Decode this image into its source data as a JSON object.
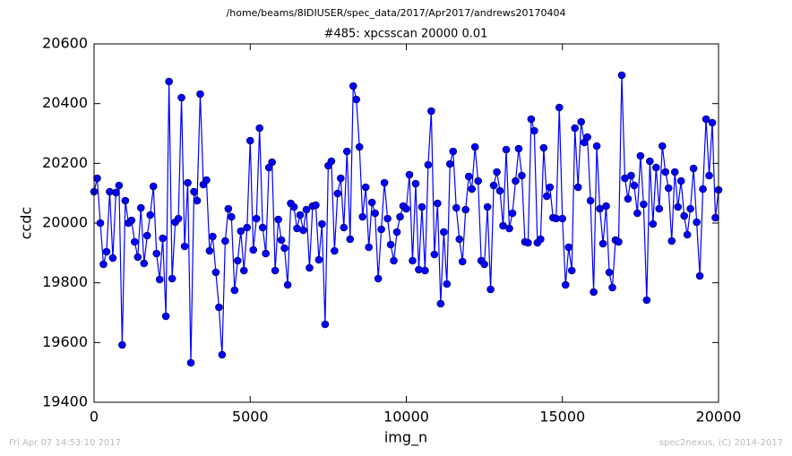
{
  "chart_data": {
    "type": "line",
    "suptitle": "/home/beams/8IDIUSER/spec_data/2017/Apr2017/andrews20170404",
    "title": "#485: xpcsscan 20000 0.01",
    "x_label": "img_n",
    "y_label": "ccdc",
    "footer_left": "Fri Apr 07 14:53:10 2017",
    "footer_right": "spec2nexus, (C) 2014-2017",
    "xlim": [
      0,
      20000
    ],
    "xticks": [
      0,
      5000,
      10000,
      15000,
      20000
    ],
    "ylim": [
      19400,
      20600
    ],
    "yticks": [
      19400,
      19600,
      19800,
      20000,
      20200,
      20400,
      20600
    ],
    "x": [
      0,
      100,
      200,
      300,
      400,
      500,
      600,
      700,
      800,
      900,
      1000,
      1100,
      1200,
      1300,
      1400,
      1500,
      1600,
      1700,
      1800,
      1900,
      2000,
      2100,
      2200,
      2300,
      2400,
      2500,
      2600,
      2700,
      2800,
      2900,
      3000,
      3100,
      3200,
      3300,
      3400,
      3500,
      3600,
      3700,
      3800,
      3900,
      4000,
      4100,
      4200,
      4300,
      4400,
      4500,
      4600,
      4700,
      4800,
      4900,
      5000,
      5100,
      5200,
      5300,
      5400,
      5500,
      5600,
      5700,
      5800,
      5900,
      6000,
      6100,
      6200,
      6300,
      6400,
      6500,
      6600,
      6700,
      6800,
      6900,
      7000,
      7100,
      7200,
      7300,
      7400,
      7500,
      7600,
      7700,
      7800,
      7900,
      8000,
      8100,
      8200,
      8300,
      8400,
      8500,
      8600,
      8700,
      8800,
      8900,
      9000,
      9100,
      9200,
      9300,
      9400,
      9500,
      9600,
      9700,
      9800,
      9900,
      10000,
      10100,
      10200,
      10300,
      10400,
      10500,
      10600,
      10700,
      10800,
      10900,
      11000,
      11100,
      11200,
      11300,
      11400,
      11500,
      11600,
      11700,
      11800,
      11900,
      12000,
      12100,
      12200,
      12300,
      12400,
      12500,
      12600,
      12700,
      12800,
      12900,
      13000,
      13100,
      13200,
      13300,
      13400,
      13500,
      13600,
      13700,
      13800,
      13900,
      14000,
      14100,
      14200,
      14300,
      14400,
      14500,
      14600,
      14700,
      14800,
      14900,
      15000,
      15100,
      15200,
      15300,
      15400,
      15500,
      15600,
      15700,
      15800,
      15900,
      16000,
      16100,
      16200,
      16300,
      16400,
      16500,
      16600,
      16700,
      16800,
      16900,
      17000,
      17100,
      17200,
      17300,
      17400,
      17500,
      17600,
      17700,
      17800,
      17900,
      18000,
      18100,
      18200,
      18300,
      18400,
      18500,
      18600,
      18700,
      18800,
      18900,
      19000,
      19100,
      19200,
      19300,
      19400,
      19500,
      19600,
      19700,
      19800,
      19900,
      20000
    ],
    "series": [
      {
        "name": "ccdc",
        "color": "#0000ff",
        "values": [
          20105,
          20150,
          20000,
          19862,
          19904,
          20105,
          19883,
          20102,
          20126,
          19592,
          20075,
          20000,
          20009,
          19937,
          19886,
          20051,
          19865,
          19958,
          20027,
          20123,
          19898,
          19811,
          19949,
          19688,
          20474,
          19814,
          20003,
          20015,
          20420,
          19922,
          20135,
          19532,
          20105,
          20075,
          20432,
          20129,
          20144,
          19907,
          19955,
          19835,
          19718,
          19559,
          19940,
          20048,
          20021,
          19775,
          19874,
          19973,
          19841,
          19985,
          20276,
          19910,
          20015,
          20318,
          19985,
          19898,
          20186,
          20204,
          19841,
          20012,
          19943,
          19916,
          19793,
          20066,
          20054,
          19982,
          20027,
          19976,
          20045,
          19850,
          20057,
          20060,
          19877,
          19997,
          19661,
          20192,
          20207,
          19907,
          20099,
          20150,
          19985,
          20240,
          19946,
          20459,
          20414,
          20255,
          20021,
          20120,
          19919,
          20069,
          20033,
          19814,
          19979,
          20135,
          20015,
          19928,
          19874,
          19970,
          20021,
          20057,
          20048,
          20162,
          19874,
          20132,
          19844,
          20054,
          19841,
          20195,
          20375,
          19895,
          20066,
          19730,
          19970,
          19796,
          20198,
          20240,
          20051,
          19946,
          19871,
          20045,
          20156,
          20114,
          20255,
          20141,
          19874,
          19862,
          20054,
          19778,
          20126,
          20171,
          20108,
          19991,
          20246,
          19982,
          20033,
          20141,
          20249,
          20159,
          19937,
          19934,
          20348,
          20309,
          19934,
          19946,
          20252,
          20090,
          20120,
          20018,
          20015,
          20387,
          20015,
          19793,
          19919,
          19841,
          20318,
          20120,
          20339,
          20270,
          20288,
          20075,
          19769,
          20258,
          20048,
          19931,
          20057,
          19835,
          19784,
          19943,
          19937,
          20495,
          20150,
          20081,
          20159,
          20126,
          20033,
          20225,
          20063,
          19742,
          20207,
          19997,
          20186,
          20048,
          20258,
          20171,
          20117,
          19940,
          20171,
          20054,
          20141,
          20024,
          19961,
          20048,
          20183,
          20003,
          19823,
          20114,
          20348,
          20159,
          20336,
          20018,
          20111
        ]
      }
    ]
  }
}
